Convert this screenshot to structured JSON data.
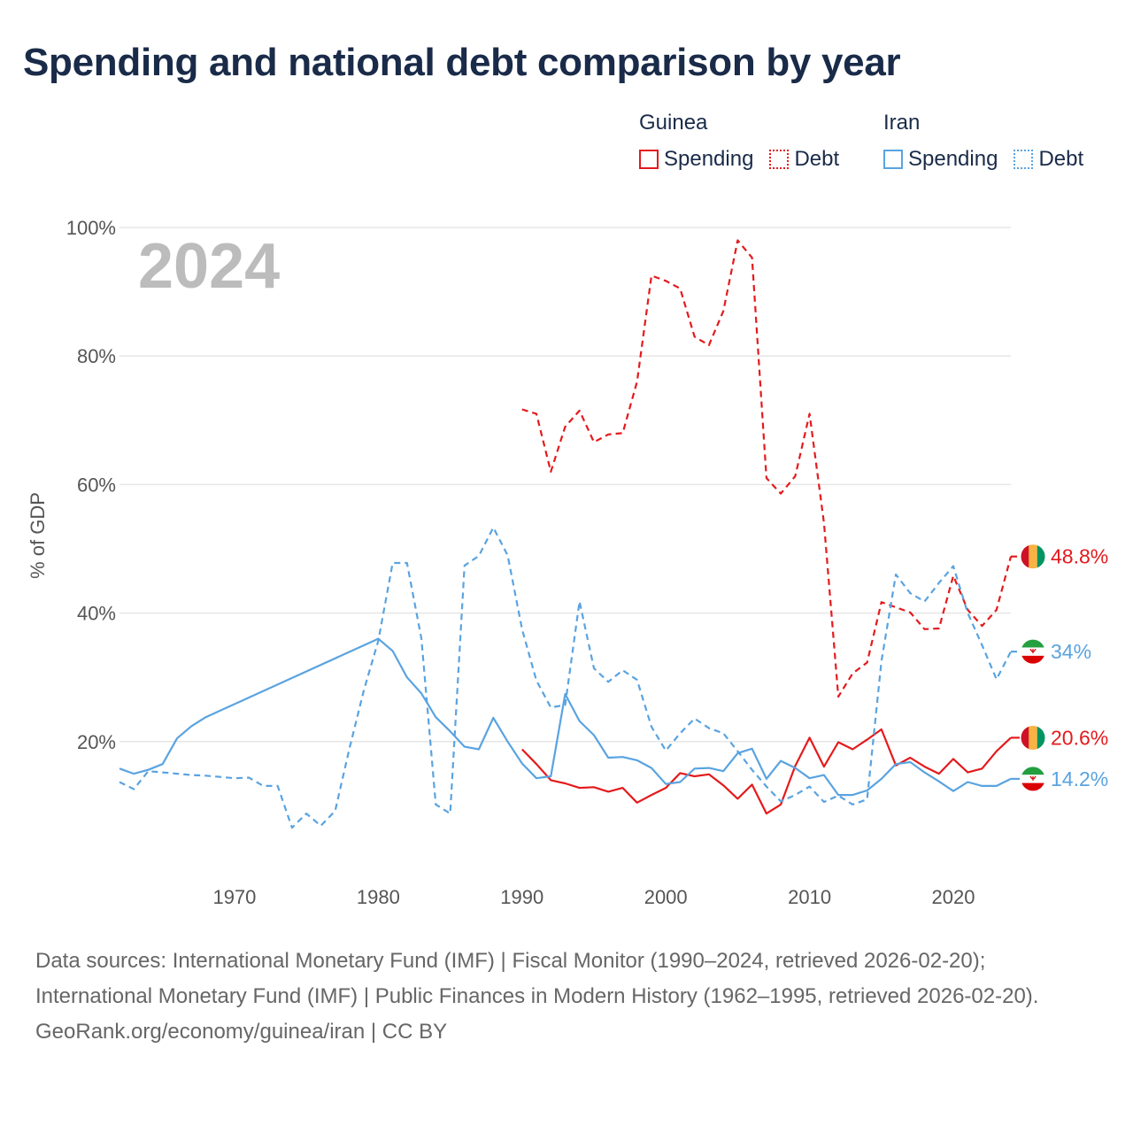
{
  "title": "Spending and national debt comparison by year",
  "legend": {
    "groups": [
      {
        "name": "Guinea",
        "color": "#e41a1c",
        "items": [
          {
            "label": "Spending",
            "style": "solid"
          },
          {
            "label": "Debt",
            "style": "dotted"
          }
        ]
      },
      {
        "name": "Iran",
        "color": "#5aa3e0",
        "items": [
          {
            "label": "Spending",
            "style": "solid"
          },
          {
            "label": "Debt",
            "style": "dotted"
          }
        ]
      }
    ]
  },
  "footer": {
    "sources": "Data sources: International Monetary Fund (IMF) | Fiscal Monitor (1990–2024, retrieved 2026-02-20); International Monetary Fund (IMF) | Public Finances in Modern History (1962–1995, retrieved 2026-02-20).",
    "credit": "GeoRank.org/economy/guinea/iran | CC BY"
  },
  "chart_data": {
    "type": "line",
    "title": "Spending and national debt comparison by year",
    "ylabel": "% of GDP",
    "xlabel": "",
    "year_watermark": "2024",
    "xlim": [
      1962,
      2024
    ],
    "ylim": [
      0,
      100
    ],
    "x_ticks": [
      1970,
      1980,
      1990,
      2000,
      2010,
      2020
    ],
    "y_ticks": [
      20,
      40,
      60,
      80,
      100
    ],
    "y_tick_labels": [
      "20%",
      "40%",
      "60%",
      "80%",
      "100%"
    ],
    "grid": true,
    "series": [
      {
        "name": "Guinea Debt",
        "country": "Guinea",
        "metric": "Debt",
        "color": "#e41a1c",
        "dash": "dashed",
        "end_label": "48.8%",
        "flag": "guinea",
        "points": [
          [
            1990,
            71.7
          ],
          [
            1991,
            71.0
          ],
          [
            1992,
            62.0
          ],
          [
            1993,
            69.0
          ],
          [
            1994,
            71.5
          ],
          [
            1995,
            66.6
          ],
          [
            1996,
            67.8
          ],
          [
            1997,
            68.0
          ],
          [
            1998,
            76.0
          ],
          [
            1999,
            92.5
          ],
          [
            2000,
            91.7
          ],
          [
            2001,
            90.5
          ],
          [
            2002,
            83.0
          ],
          [
            2003,
            81.7
          ],
          [
            2004,
            87.0
          ],
          [
            2005,
            98.0
          ],
          [
            2006,
            95.3
          ],
          [
            2007,
            61.0
          ],
          [
            2008,
            58.6
          ],
          [
            2009,
            61.3
          ],
          [
            2010,
            71.0
          ],
          [
            2011,
            54.0
          ],
          [
            2012,
            27.0
          ],
          [
            2013,
            30.6
          ],
          [
            2014,
            32.3
          ],
          [
            2015,
            41.7
          ],
          [
            2016,
            40.9
          ],
          [
            2017,
            40.1
          ],
          [
            2018,
            37.5
          ],
          [
            2019,
            37.6
          ],
          [
            2020,
            45.8
          ],
          [
            2021,
            40.5
          ],
          [
            2022,
            38.0
          ],
          [
            2023,
            40.5
          ],
          [
            2024,
            48.8
          ]
        ]
      },
      {
        "name": "Guinea Spending",
        "country": "Guinea",
        "metric": "Spending",
        "color": "#e41a1c",
        "dash": "solid",
        "end_label": "20.6%",
        "flag": "guinea",
        "points": [
          [
            1990,
            18.8
          ],
          [
            1991,
            16.5
          ],
          [
            1992,
            14.0
          ],
          [
            1993,
            13.5
          ],
          [
            1994,
            12.8
          ],
          [
            1995,
            12.9
          ],
          [
            1996,
            12.2
          ],
          [
            1997,
            12.8
          ],
          [
            1998,
            10.5
          ],
          [
            1999,
            11.7
          ],
          [
            2000,
            12.8
          ],
          [
            2001,
            15.1
          ],
          [
            2002,
            14.6
          ],
          [
            2003,
            14.9
          ],
          [
            2004,
            13.2
          ],
          [
            2005,
            11.1
          ],
          [
            2006,
            13.3
          ],
          [
            2007,
            8.8
          ],
          [
            2008,
            10.2
          ],
          [
            2009,
            16.2
          ],
          [
            2010,
            20.6
          ],
          [
            2011,
            16.1
          ],
          [
            2012,
            19.9
          ],
          [
            2013,
            18.8
          ],
          [
            2014,
            20.3
          ],
          [
            2015,
            21.9
          ],
          [
            2016,
            16.3
          ],
          [
            2017,
            17.5
          ],
          [
            2018,
            16.1
          ],
          [
            2019,
            15.0
          ],
          [
            2020,
            17.3
          ],
          [
            2021,
            15.2
          ],
          [
            2022,
            15.8
          ],
          [
            2023,
            18.5
          ],
          [
            2024,
            20.6
          ]
        ]
      },
      {
        "name": "Iran Debt",
        "country": "Iran",
        "metric": "Debt",
        "color": "#5aa3e0",
        "dash": "dashed",
        "end_label": "34%",
        "flag": "iran",
        "points": [
          [
            1962,
            13.7
          ],
          [
            1963,
            12.6
          ],
          [
            1964,
            15.4
          ],
          [
            1965,
            15.2
          ],
          [
            1966,
            15.0
          ],
          [
            1967,
            14.8
          ],
          [
            1968,
            14.7
          ],
          [
            1969,
            14.5
          ],
          [
            1970,
            14.3
          ],
          [
            1971,
            14.4
          ],
          [
            1972,
            13.1
          ],
          [
            1973,
            13.1
          ],
          [
            1974,
            6.6
          ],
          [
            1975,
            8.8
          ],
          [
            1976,
            6.9
          ],
          [
            1977,
            9.2
          ],
          [
            1978,
            19.0
          ],
          [
            1979,
            28.0
          ],
          [
            1980,
            35.7
          ],
          [
            1981,
            47.8
          ],
          [
            1982,
            47.8
          ],
          [
            1983,
            36.0
          ],
          [
            1984,
            10.2
          ],
          [
            1985,
            8.8
          ],
          [
            1986,
            47.4
          ],
          [
            1987,
            48.9
          ],
          [
            1988,
            53.3
          ],
          [
            1989,
            49.0
          ],
          [
            1990,
            37.5
          ],
          [
            1991,
            29.5
          ],
          [
            1992,
            25.3
          ],
          [
            1993,
            25.7
          ],
          [
            1994,
            41.8
          ],
          [
            1995,
            31.4
          ],
          [
            1996,
            29.3
          ],
          [
            1997,
            31.1
          ],
          [
            1998,
            29.6
          ],
          [
            1999,
            22.3
          ],
          [
            2000,
            18.6
          ],
          [
            2001,
            21.3
          ],
          [
            2002,
            23.6
          ],
          [
            2003,
            22.1
          ],
          [
            2004,
            21.3
          ],
          [
            2005,
            18.5
          ],
          [
            2006,
            15.6
          ],
          [
            2007,
            13.0
          ],
          [
            2008,
            10.7
          ],
          [
            2009,
            11.7
          ],
          [
            2010,
            13.0
          ],
          [
            2011,
            10.6
          ],
          [
            2012,
            11.6
          ],
          [
            2013,
            10.2
          ],
          [
            2014,
            11.0
          ],
          [
            2015,
            32.5
          ],
          [
            2016,
            46.0
          ],
          [
            2017,
            43.1
          ],
          [
            2018,
            41.8
          ],
          [
            2019,
            44.7
          ],
          [
            2020,
            47.3
          ],
          [
            2021,
            40.0
          ],
          [
            2022,
            35.0
          ],
          [
            2023,
            29.7
          ],
          [
            2024,
            34.0
          ]
        ]
      },
      {
        "name": "Iran Spending",
        "country": "Iran",
        "metric": "Spending",
        "color": "#5aa3e0",
        "dash": "solid",
        "end_label": "14.2%",
        "flag": "iran",
        "points": [
          [
            1962,
            15.8
          ],
          [
            1963,
            15.0
          ],
          [
            1964,
            15.6
          ],
          [
            1965,
            16.5
          ],
          [
            1966,
            20.5
          ],
          [
            1967,
            22.4
          ],
          [
            1968,
            23.8
          ],
          [
            1980,
            36.0
          ],
          [
            1981,
            34.1
          ],
          [
            1982,
            30.0
          ],
          [
            1983,
            27.5
          ],
          [
            1984,
            23.8
          ],
          [
            1985,
            21.6
          ],
          [
            1986,
            19.2
          ],
          [
            1987,
            18.8
          ],
          [
            1988,
            23.7
          ],
          [
            1989,
            20.0
          ],
          [
            1990,
            16.6
          ],
          [
            1991,
            14.3
          ],
          [
            1992,
            14.6
          ],
          [
            1993,
            27.4
          ],
          [
            1994,
            23.2
          ],
          [
            1995,
            21.0
          ],
          [
            1996,
            17.5
          ],
          [
            1997,
            17.6
          ],
          [
            1998,
            17.1
          ],
          [
            1999,
            15.9
          ],
          [
            2000,
            13.4
          ],
          [
            2001,
            13.7
          ],
          [
            2002,
            15.8
          ],
          [
            2003,
            15.9
          ],
          [
            2004,
            15.4
          ],
          [
            2005,
            18.2
          ],
          [
            2006,
            18.9
          ],
          [
            2007,
            14.2
          ],
          [
            2008,
            17.0
          ],
          [
            2009,
            15.9
          ],
          [
            2010,
            14.3
          ],
          [
            2011,
            14.8
          ],
          [
            2012,
            11.7
          ],
          [
            2013,
            11.7
          ],
          [
            2014,
            12.4
          ],
          [
            2015,
            14.2
          ],
          [
            2016,
            16.5
          ],
          [
            2017,
            16.8
          ],
          [
            2018,
            15.2
          ],
          [
            2019,
            13.8
          ],
          [
            2020,
            12.3
          ],
          [
            2021,
            13.7
          ],
          [
            2022,
            13.1
          ],
          [
            2023,
            13.1
          ],
          [
            2024,
            14.2
          ]
        ]
      }
    ]
  }
}
